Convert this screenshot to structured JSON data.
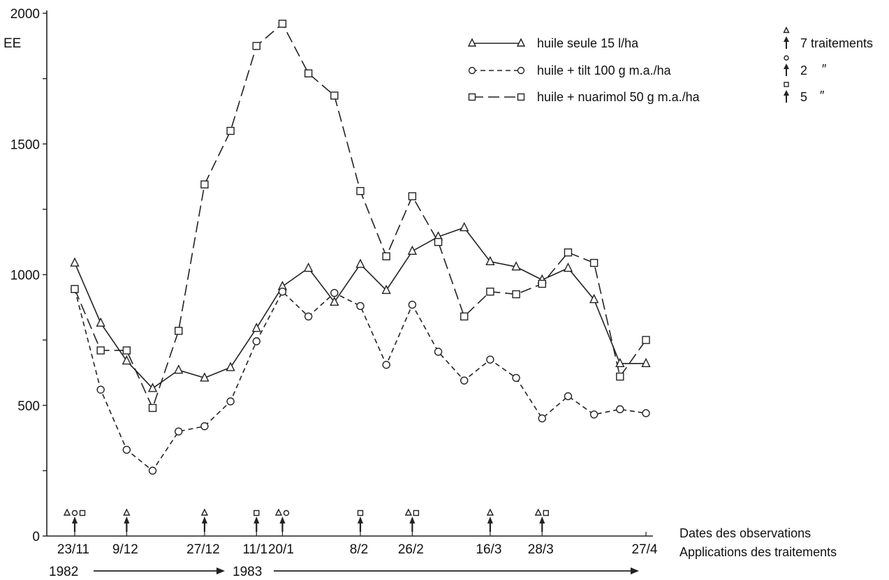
{
  "chart_data": {
    "type": "line",
    "ylabel": "EE",
    "ylim": [
      0,
      2000
    ],
    "yticks": [
      0,
      500,
      1000,
      1500,
      2000
    ],
    "year_labels": [
      "1982",
      "1983"
    ],
    "bottom_notes": [
      "Dates des observations",
      "Applications des traitements"
    ],
    "date_labels": [
      {
        "label": "23/11",
        "x": 0
      },
      {
        "label": "9/12",
        "x": 2
      },
      {
        "label": "27/12",
        "x": 5
      },
      {
        "label": "11/1",
        "x": 7
      },
      {
        "label": "20/1",
        "x": 8
      },
      {
        "label": "8/2",
        "x": 11
      },
      {
        "label": "26/2",
        "x": 13
      },
      {
        "label": "16/3",
        "x": 16
      },
      {
        "label": "28/3",
        "x": 18
      },
      {
        "label": "27/4",
        "x": 22
      }
    ],
    "x_range": [
      0,
      22
    ],
    "series": [
      {
        "name": "huile seule 15 l/ha",
        "marker": "triangle",
        "dash": "solid",
        "treatments_label": "7 traitements",
        "treatment_points": [
          0,
          2,
          5,
          8,
          13,
          16,
          18
        ],
        "points": [
          [
            0,
            1045
          ],
          [
            1,
            815
          ],
          [
            2,
            670
          ],
          [
            3,
            565
          ],
          [
            4,
            635
          ],
          [
            5,
            605
          ],
          [
            6,
            645
          ],
          [
            7,
            795
          ],
          [
            8,
            955
          ],
          [
            9,
            1025
          ],
          [
            10,
            895
          ],
          [
            11,
            1040
          ],
          [
            12,
            940
          ],
          [
            13,
            1090
          ],
          [
            14,
            1145
          ],
          [
            15,
            1180
          ],
          [
            16,
            1050
          ],
          [
            17,
            1030
          ],
          [
            18,
            980
          ],
          [
            19,
            1025
          ],
          [
            20,
            905
          ],
          [
            21,
            660
          ],
          [
            22,
            660
          ]
        ]
      },
      {
        "name": "huile + tilt 100 g m.a./ha",
        "marker": "circle",
        "dash": "short",
        "treatments_label": "2",
        "treatment_points": [
          0,
          8
        ],
        "points": [
          [
            0,
            945
          ],
          [
            1,
            560
          ],
          [
            2,
            330
          ],
          [
            3,
            250
          ],
          [
            4,
            400
          ],
          [
            5,
            420
          ],
          [
            6,
            515
          ],
          [
            7,
            745
          ],
          [
            8,
            935
          ],
          [
            9,
            840
          ],
          [
            10,
            930
          ],
          [
            11,
            880
          ],
          [
            12,
            655
          ],
          [
            13,
            885
          ],
          [
            14,
            705
          ],
          [
            15,
            595
          ],
          [
            16,
            675
          ],
          [
            17,
            605
          ],
          [
            18,
            450
          ],
          [
            19,
            535
          ],
          [
            20,
            465
          ],
          [
            21,
            485
          ],
          [
            22,
            470
          ]
        ]
      },
      {
        "name": "huile + nuarimol 50 g m.a./ha",
        "marker": "square",
        "dash": "long",
        "treatments_label": "5",
        "treatment_points": [
          0,
          7,
          11,
          13,
          18
        ],
        "points": [
          [
            0,
            945
          ],
          [
            1,
            710
          ],
          [
            2,
            710
          ],
          [
            3,
            490
          ],
          [
            4,
            785
          ],
          [
            5,
            1345
          ],
          [
            6,
            1550
          ],
          [
            7,
            1875
          ],
          [
            8,
            1960
          ],
          [
            9,
            1770
          ],
          [
            10,
            1685
          ],
          [
            11,
            1320
          ],
          [
            12,
            1070
          ],
          [
            13,
            1300
          ],
          [
            14,
            1125
          ],
          [
            15,
            840
          ],
          [
            16,
            935
          ],
          [
            17,
            925
          ],
          [
            18,
            965
          ],
          [
            19,
            1085
          ],
          [
            20,
            1045
          ],
          [
            21,
            610
          ],
          [
            22,
            750
          ]
        ]
      }
    ]
  }
}
